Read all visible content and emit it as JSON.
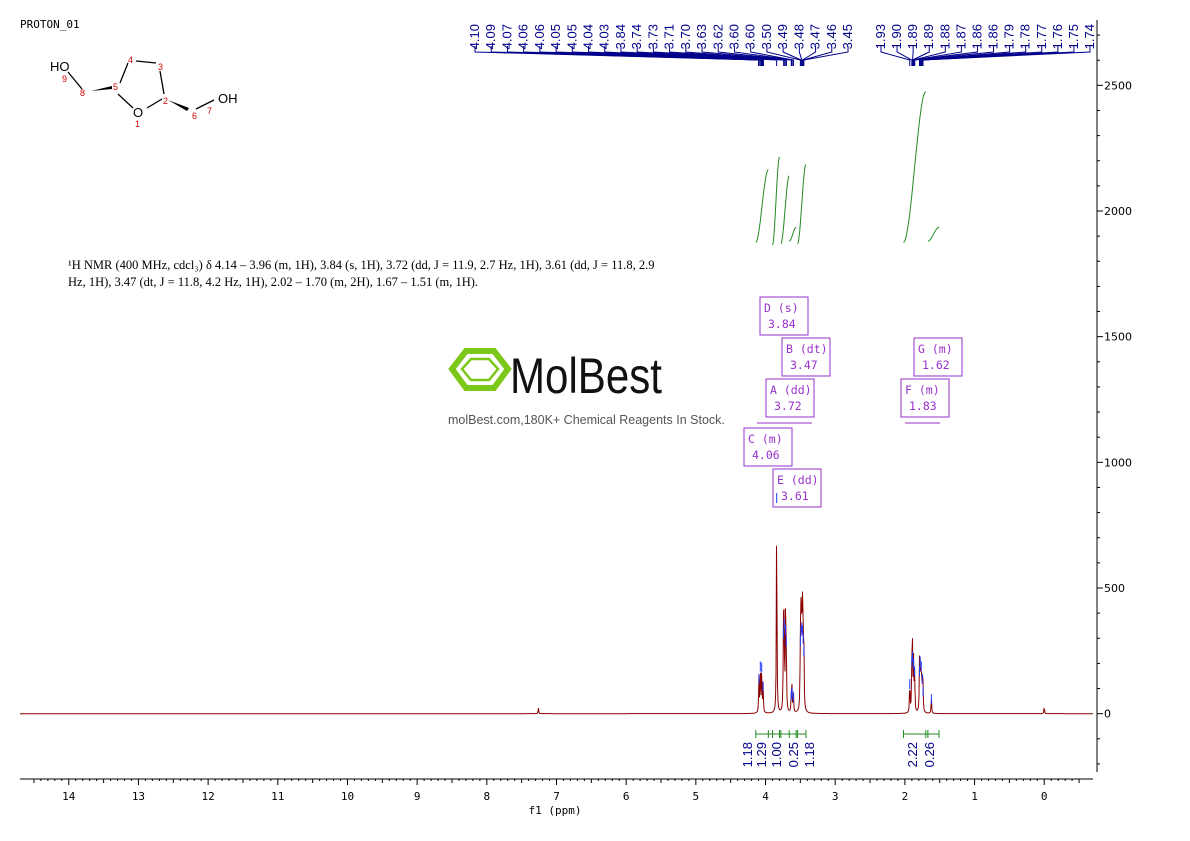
{
  "sample_id": "PROTON_01",
  "nmr_description": "¹H NMR (400 MHz, cdcl₃) δ 4.14 – 3.96 (m, 1H), 3.84 (s, 1H), 3.72 (dd, J = 11.9, 2.7 Hz, 1H), 3.61 (dd, J = 11.8, 2.9 Hz, 1H), 3.47 (dt, J = 11.8, 4.2 Hz, 1H), 2.02 – 1.70 (m, 2H), 1.67 – 1.51 (m, 1H).",
  "watermark": {
    "brand": "MolBest",
    "tagline": "molBest.com,180K+ Chemical Reagents In Stock."
  },
  "molecule": {
    "atoms": [
      "HO",
      "9",
      "8",
      "5",
      "4",
      "3",
      "2",
      "O",
      "1",
      "6",
      "7",
      "OH"
    ]
  },
  "colors": {
    "spectrum": "#8b0000",
    "peak_labels": "#00008b",
    "integrals": "#228b22",
    "multiplets": "#9932cc",
    "axis": "#000000"
  },
  "chart_data": {
    "type": "line",
    "xlabel": "f1 (ppm)",
    "xlim": [
      14.7,
      -0.7
    ],
    "ylim": [
      -260,
      2760
    ],
    "x_ticks": [
      14,
      13,
      12,
      11,
      10,
      9,
      8,
      7,
      6,
      5,
      4,
      3,
      2,
      1,
      0
    ],
    "y_ticks": [
      2500,
      2000,
      1500,
      1000,
      500,
      0
    ],
    "peak_labels_group1": [
      "4.10",
      "4.09",
      "4.07",
      "4.06",
      "4.06",
      "4.05",
      "4.05",
      "4.04",
      "4.03",
      "3.84",
      "3.74",
      "3.73",
      "3.71",
      "3.70",
      "3.63",
      "3.62",
      "3.60",
      "3.60",
      "3.50",
      "3.49",
      "3.48",
      "3.47",
      "3.46",
      "3.45"
    ],
    "peak_labels_group2": [
      "1.93",
      "1.90",
      "1.89",
      "1.89",
      "1.88",
      "1.87",
      "1.86",
      "1.86",
      "1.79",
      "1.78",
      "1.77",
      "1.76",
      "1.75",
      "1.74"
    ],
    "multiplets": [
      {
        "id": "D",
        "type": "s",
        "shift": "3.84"
      },
      {
        "id": "B",
        "type": "dt",
        "shift": "3.47"
      },
      {
        "id": "A",
        "type": "dd",
        "shift": "3.72"
      },
      {
        "id": "C",
        "type": "m",
        "shift": "4.06"
      },
      {
        "id": "E",
        "type": "dd",
        "shift": "3.61"
      },
      {
        "id": "G",
        "type": "m",
        "shift": "1.62"
      },
      {
        "id": "F",
        "type": "m",
        "shift": "1.83"
      }
    ],
    "integrals": [
      {
        "value": "1.18",
        "shift": 4.06
      },
      {
        "value": "1.29",
        "shift": 3.84
      },
      {
        "value": "1.00",
        "shift": 3.72
      },
      {
        "value": "0.25",
        "shift": 3.61
      },
      {
        "value": "1.18",
        "shift": 3.47
      },
      {
        "value": "2.22",
        "shift": 1.83
      },
      {
        "value": "0.26",
        "shift": 1.62
      }
    ],
    "peaks": [
      {
        "shift": 7.26,
        "height": 25
      },
      {
        "shift": 4.095,
        "height": 150
      },
      {
        "shift": 4.075,
        "height": 200
      },
      {
        "shift": 4.055,
        "height": 195
      },
      {
        "shift": 4.035,
        "height": 120
      },
      {
        "shift": 3.84,
        "height": 870
      },
      {
        "shift": 3.743,
        "height": 330
      },
      {
        "shift": 3.733,
        "height": 370
      },
      {
        "shift": 3.713,
        "height": 345
      },
      {
        "shift": 3.703,
        "height": 300
      },
      {
        "shift": 3.63,
        "height": 85
      },
      {
        "shift": 3.62,
        "height": 95
      },
      {
        "shift": 3.6,
        "height": 80
      },
      {
        "shift": 3.5,
        "height": 300
      },
      {
        "shift": 3.49,
        "height": 340
      },
      {
        "shift": 3.48,
        "height": 355
      },
      {
        "shift": 3.47,
        "height": 345
      },
      {
        "shift": 3.46,
        "height": 310
      },
      {
        "shift": 3.45,
        "height": 260
      },
      {
        "shift": 1.93,
        "height": 130
      },
      {
        "shift": 1.9,
        "height": 220
      },
      {
        "shift": 1.89,
        "height": 240
      },
      {
        "shift": 1.875,
        "height": 210
      },
      {
        "shift": 1.86,
        "height": 180
      },
      {
        "shift": 1.79,
        "height": 180
      },
      {
        "shift": 1.78,
        "height": 220
      },
      {
        "shift": 1.765,
        "height": 200
      },
      {
        "shift": 1.75,
        "height": 150
      },
      {
        "shift": 1.74,
        "height": 100
      },
      {
        "shift": 1.62,
        "height": 70
      },
      {
        "shift": 0.0,
        "height": 30
      }
    ]
  }
}
